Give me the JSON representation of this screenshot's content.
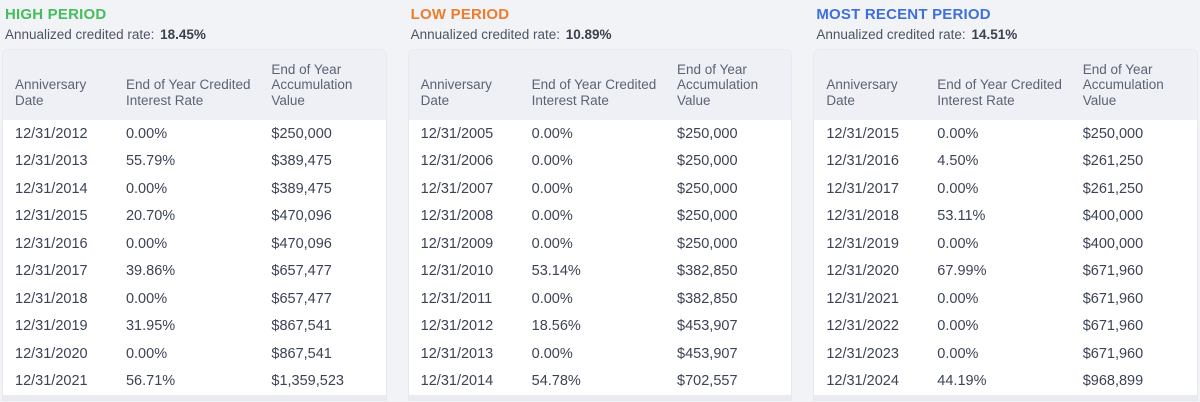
{
  "page": {
    "background_color": "#F2F3F7",
    "card_background_color": "#FFFFFF",
    "table_header_background_color": "#EEF0F6"
  },
  "panels": [
    {
      "title": "HIGH PERIOD",
      "title_color": "#42BE5C",
      "rate_label": "Annualized credited rate:",
      "rate_value": "18.45%",
      "columns": [
        "Anniversary Date",
        "End of Year Credited Interest Rate",
        "End of Year Accumulation Value"
      ],
      "rows": [
        [
          "12/31/2012",
          "0.00%",
          "$250,000"
        ],
        [
          "12/31/2013",
          "55.79%",
          "$389,475"
        ],
        [
          "12/31/2014",
          "0.00%",
          "$389,475"
        ],
        [
          "12/31/2015",
          "20.70%",
          "$470,096"
        ],
        [
          "12/31/2016",
          "0.00%",
          "$470,096"
        ],
        [
          "12/31/2017",
          "39.86%",
          "$657,477"
        ],
        [
          "12/31/2018",
          "0.00%",
          "$657,477"
        ],
        [
          "12/31/2019",
          "31.95%",
          "$867,541"
        ],
        [
          "12/31/2020",
          "0.00%",
          "$867,541"
        ],
        [
          "12/31/2021",
          "56.71%",
          "$1,359,523"
        ]
      ]
    },
    {
      "title": "LOW PERIOD",
      "title_color": "#EE7D2B",
      "rate_label": "Annualized credited rate:",
      "rate_value": "10.89%",
      "columns": [
        "Anniversary Date",
        "End of Year Credited Interest Rate",
        "End of Year Accumulation Value"
      ],
      "rows": [
        [
          "12/31/2005",
          "0.00%",
          "$250,000"
        ],
        [
          "12/31/2006",
          "0.00%",
          "$250,000"
        ],
        [
          "12/31/2007",
          "0.00%",
          "$250,000"
        ],
        [
          "12/31/2008",
          "0.00%",
          "$250,000"
        ],
        [
          "12/31/2009",
          "0.00%",
          "$250,000"
        ],
        [
          "12/31/2010",
          "53.14%",
          "$382,850"
        ],
        [
          "12/31/2011",
          "0.00%",
          "$382,850"
        ],
        [
          "12/31/2012",
          "18.56%",
          "$453,907"
        ],
        [
          "12/31/2013",
          "0.00%",
          "$453,907"
        ],
        [
          "12/31/2014",
          "54.78%",
          "$702,557"
        ]
      ]
    },
    {
      "title": "MOST RECENT PERIOD",
      "title_color": "#3F6FD8",
      "rate_label": "Annualized credited rate:",
      "rate_value": "14.51%",
      "columns": [
        "Anniversary Date",
        "End of Year Credited Interest Rate",
        "End of Year Accumulation Value"
      ],
      "rows": [
        [
          "12/31/2015",
          "0.00%",
          "$250,000"
        ],
        [
          "12/31/2016",
          "4.50%",
          "$261,250"
        ],
        [
          "12/31/2017",
          "0.00%",
          "$261,250"
        ],
        [
          "12/31/2018",
          "53.11%",
          "$400,000"
        ],
        [
          "12/31/2019",
          "0.00%",
          "$400,000"
        ],
        [
          "12/31/2020",
          "67.99%",
          "$671,960"
        ],
        [
          "12/31/2021",
          "0.00%",
          "$671,960"
        ],
        [
          "12/31/2022",
          "0.00%",
          "$671,960"
        ],
        [
          "12/31/2023",
          "0.00%",
          "$671,960"
        ],
        [
          "12/31/2024",
          "44.19%",
          "$968,899"
        ]
      ]
    }
  ]
}
